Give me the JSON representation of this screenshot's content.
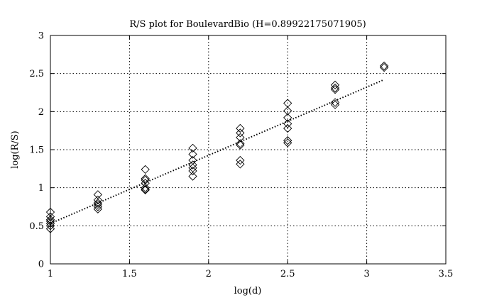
{
  "chart_data": {
    "type": "scatter",
    "title": "R/S plot for BoulevardBio (H=0.89922175071905)",
    "xlabel": "log(d)",
    "ylabel": "log(R/S)",
    "xlim": [
      1,
      3.5
    ],
    "ylim": [
      0,
      3
    ],
    "xticks": [
      "1",
      "1.5",
      "2",
      "2.5",
      "3",
      "3.5"
    ],
    "yticks": [
      "0",
      "0.5",
      "1",
      "1.5",
      "2",
      "2.5",
      "3"
    ],
    "grid": true,
    "marker": "diamond",
    "points": [
      {
        "x": 1.0,
        "y": 0.68
      },
      {
        "x": 1.0,
        "y": 0.62
      },
      {
        "x": 1.0,
        "y": 0.58
      },
      {
        "x": 1.0,
        "y": 0.56
      },
      {
        "x": 1.0,
        "y": 0.53
      },
      {
        "x": 1.0,
        "y": 0.5
      },
      {
        "x": 1.0,
        "y": 0.46
      },
      {
        "x": 1.3,
        "y": 0.91
      },
      {
        "x": 1.3,
        "y": 0.84
      },
      {
        "x": 1.3,
        "y": 0.8
      },
      {
        "x": 1.3,
        "y": 0.78
      },
      {
        "x": 1.3,
        "y": 0.75
      },
      {
        "x": 1.3,
        "y": 0.72
      },
      {
        "x": 1.6,
        "y": 1.24
      },
      {
        "x": 1.6,
        "y": 1.12
      },
      {
        "x": 1.6,
        "y": 1.1
      },
      {
        "x": 1.6,
        "y": 1.06
      },
      {
        "x": 1.6,
        "y": 1.0
      },
      {
        "x": 1.6,
        "y": 0.98
      },
      {
        "x": 1.6,
        "y": 0.97
      },
      {
        "x": 1.9,
        "y": 1.52
      },
      {
        "x": 1.9,
        "y": 1.44
      },
      {
        "x": 1.9,
        "y": 1.36
      },
      {
        "x": 1.9,
        "y": 1.3
      },
      {
        "x": 1.9,
        "y": 1.26
      },
      {
        "x": 1.9,
        "y": 1.22
      },
      {
        "x": 1.9,
        "y": 1.15
      },
      {
        "x": 2.2,
        "y": 1.78
      },
      {
        "x": 2.2,
        "y": 1.72
      },
      {
        "x": 2.2,
        "y": 1.66
      },
      {
        "x": 2.2,
        "y": 1.58
      },
      {
        "x": 2.2,
        "y": 1.56
      },
      {
        "x": 2.2,
        "y": 1.36
      },
      {
        "x": 2.2,
        "y": 1.31
      },
      {
        "x": 2.5,
        "y": 2.11
      },
      {
        "x": 2.5,
        "y": 2.01
      },
      {
        "x": 2.5,
        "y": 1.92
      },
      {
        "x": 2.5,
        "y": 1.84
      },
      {
        "x": 2.5,
        "y": 1.78
      },
      {
        "x": 2.5,
        "y": 1.62
      },
      {
        "x": 2.5,
        "y": 1.59
      },
      {
        "x": 2.8,
        "y": 2.35
      },
      {
        "x": 2.8,
        "y": 2.31
      },
      {
        "x": 2.8,
        "y": 2.29
      },
      {
        "x": 2.8,
        "y": 2.12
      },
      {
        "x": 2.8,
        "y": 2.09
      },
      {
        "x": 3.11,
        "y": 2.6
      },
      {
        "x": 3.11,
        "y": 2.58
      }
    ],
    "fit_line": {
      "x": [
        1.0,
        3.11
      ],
      "y": [
        0.53,
        2.42
      ]
    }
  }
}
